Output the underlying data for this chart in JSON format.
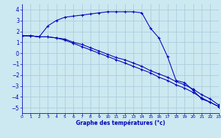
{
  "xlabel": "Graphe des températures (°c)",
  "background_color": "#cce8f0",
  "grid_color": "#aaccdd",
  "line_color": "#0000bb",
  "xlim": [
    0,
    23
  ],
  "ylim": [
    -5.5,
    4.5
  ],
  "yticks": [
    -5,
    -4,
    -3,
    -2,
    -1,
    0,
    1,
    2,
    3,
    4
  ],
  "xticks": [
    0,
    1,
    2,
    3,
    4,
    5,
    6,
    7,
    8,
    9,
    10,
    11,
    12,
    13,
    14,
    15,
    16,
    17,
    18,
    19,
    20,
    21,
    22,
    23
  ],
  "line1_x": [
    0,
    1,
    2,
    3,
    4,
    5,
    6,
    7,
    8,
    9,
    10,
    11,
    12,
    13,
    14,
    15,
    16,
    17,
    18,
    19,
    20,
    21,
    22,
    23
  ],
  "line1_y": [
    1.6,
    1.6,
    1.5,
    2.5,
    3.0,
    3.3,
    3.4,
    3.5,
    3.6,
    3.7,
    3.8,
    3.8,
    3.8,
    3.8,
    3.7,
    2.3,
    1.4,
    -0.3,
    -2.5,
    -2.7,
    -3.4,
    -4.2,
    -4.5,
    -4.9
  ],
  "line2_x": [
    0,
    1,
    2,
    3,
    4,
    5,
    6,
    7,
    8,
    9,
    10,
    11,
    12,
    13,
    14,
    15,
    16,
    17,
    18,
    19,
    20,
    21,
    22,
    23
  ],
  "line2_y": [
    1.6,
    1.6,
    1.5,
    1.5,
    1.4,
    1.3,
    1.0,
    0.8,
    0.5,
    0.2,
    -0.1,
    -0.4,
    -0.6,
    -0.9,
    -1.2,
    -1.6,
    -1.9,
    -2.2,
    -2.6,
    -2.9,
    -3.3,
    -3.8,
    -4.2,
    -4.75
  ],
  "line3_x": [
    0,
    1,
    2,
    3,
    4,
    5,
    6,
    7,
    8,
    9,
    10,
    11,
    12,
    13,
    14,
    15,
    16,
    17,
    18,
    19,
    20,
    21,
    22,
    23
  ],
  "line3_y": [
    1.6,
    1.6,
    1.5,
    1.5,
    1.4,
    1.2,
    0.9,
    0.6,
    0.3,
    0.0,
    -0.3,
    -0.6,
    -0.9,
    -1.2,
    -1.5,
    -1.8,
    -2.2,
    -2.5,
    -2.9,
    -3.2,
    -3.6,
    -4.1,
    -4.5,
    -4.9
  ]
}
